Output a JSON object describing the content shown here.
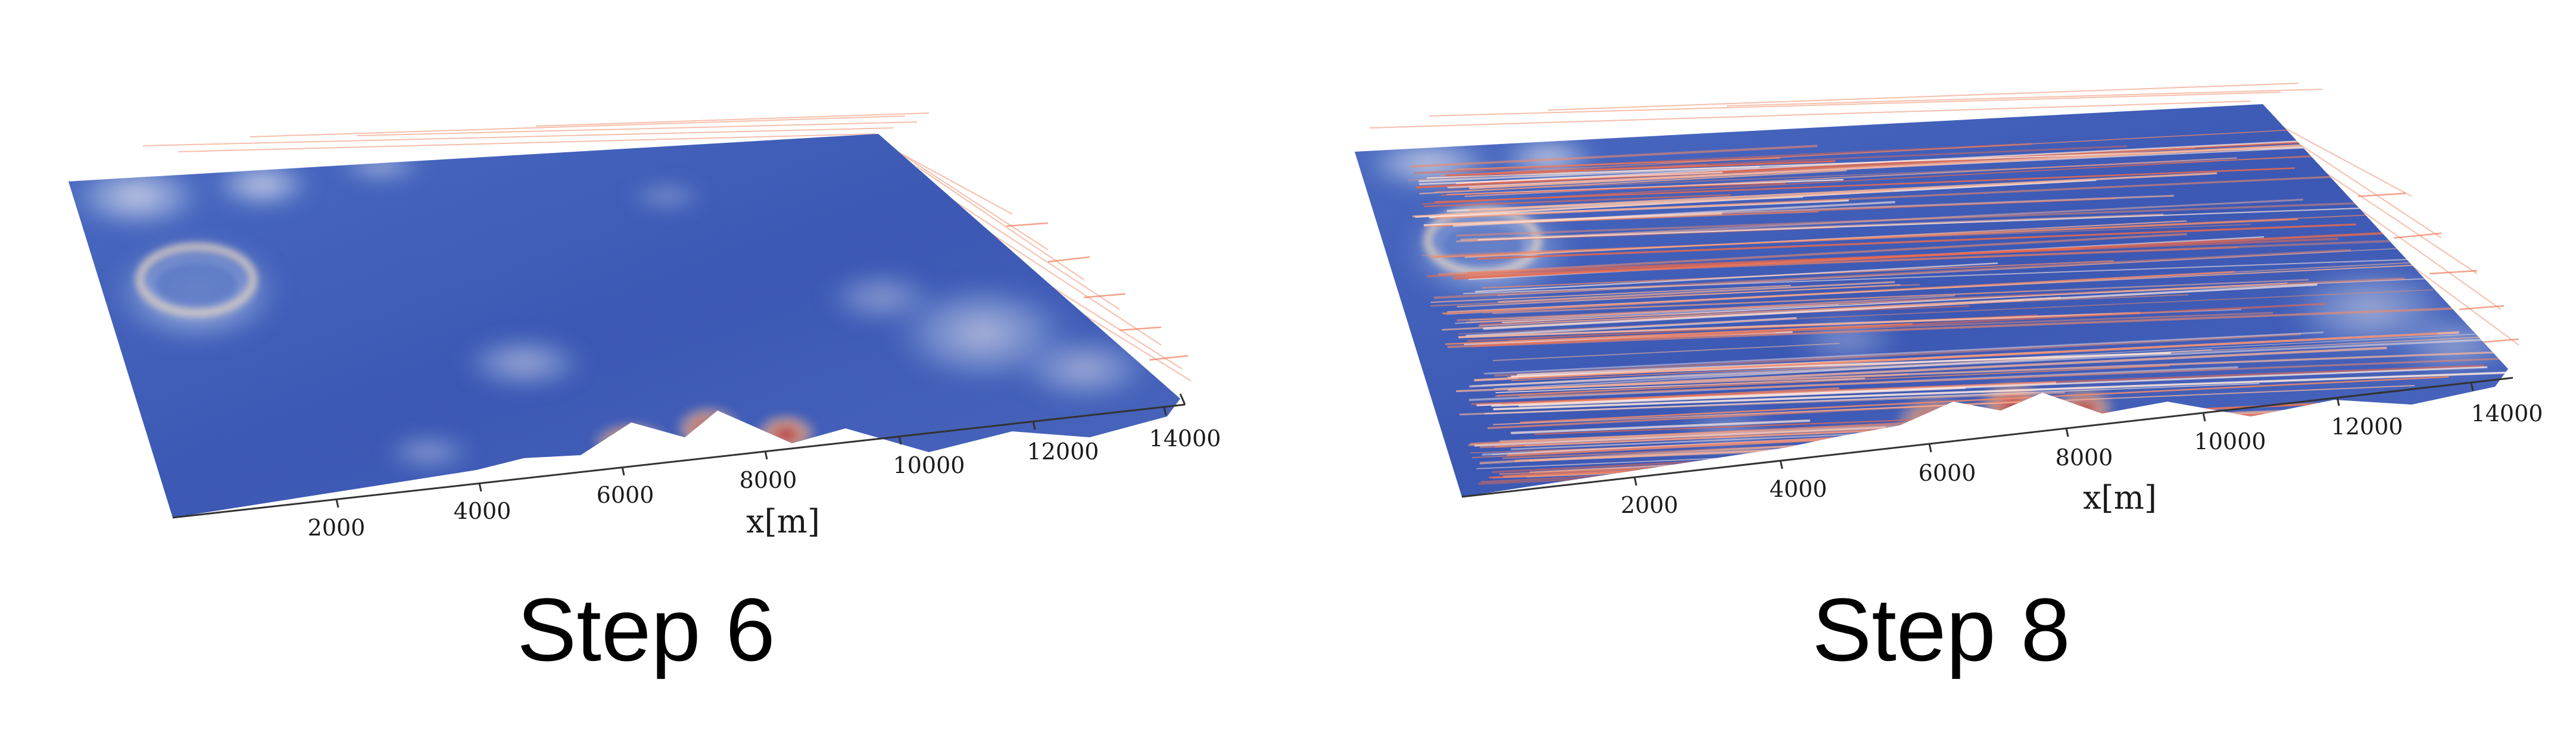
{
  "panels": [
    {
      "id": "step6",
      "caption": "Step 6",
      "axis_label": "x[m]",
      "x_ticks": [
        "2000",
        "4000",
        "6000",
        "8000",
        "10000",
        "12000",
        "14000"
      ],
      "flow_lines": "sparse"
    },
    {
      "id": "step8",
      "caption": "Step 8",
      "axis_label": "x[m]",
      "x_ticks": [
        "2000",
        "4000",
        "6000",
        "8000",
        "10000",
        "12000",
        "14000"
      ],
      "flow_lines": "dense"
    }
  ],
  "colors": {
    "terrain_low": "#3a5bbf",
    "terrain_mid": "#8fa8dc",
    "terrain_high": "#f0dcc8",
    "ridge_peak": "#d9452b",
    "flow_line": "#f08a68",
    "flow_line_bright": "#ffe8dc"
  }
}
